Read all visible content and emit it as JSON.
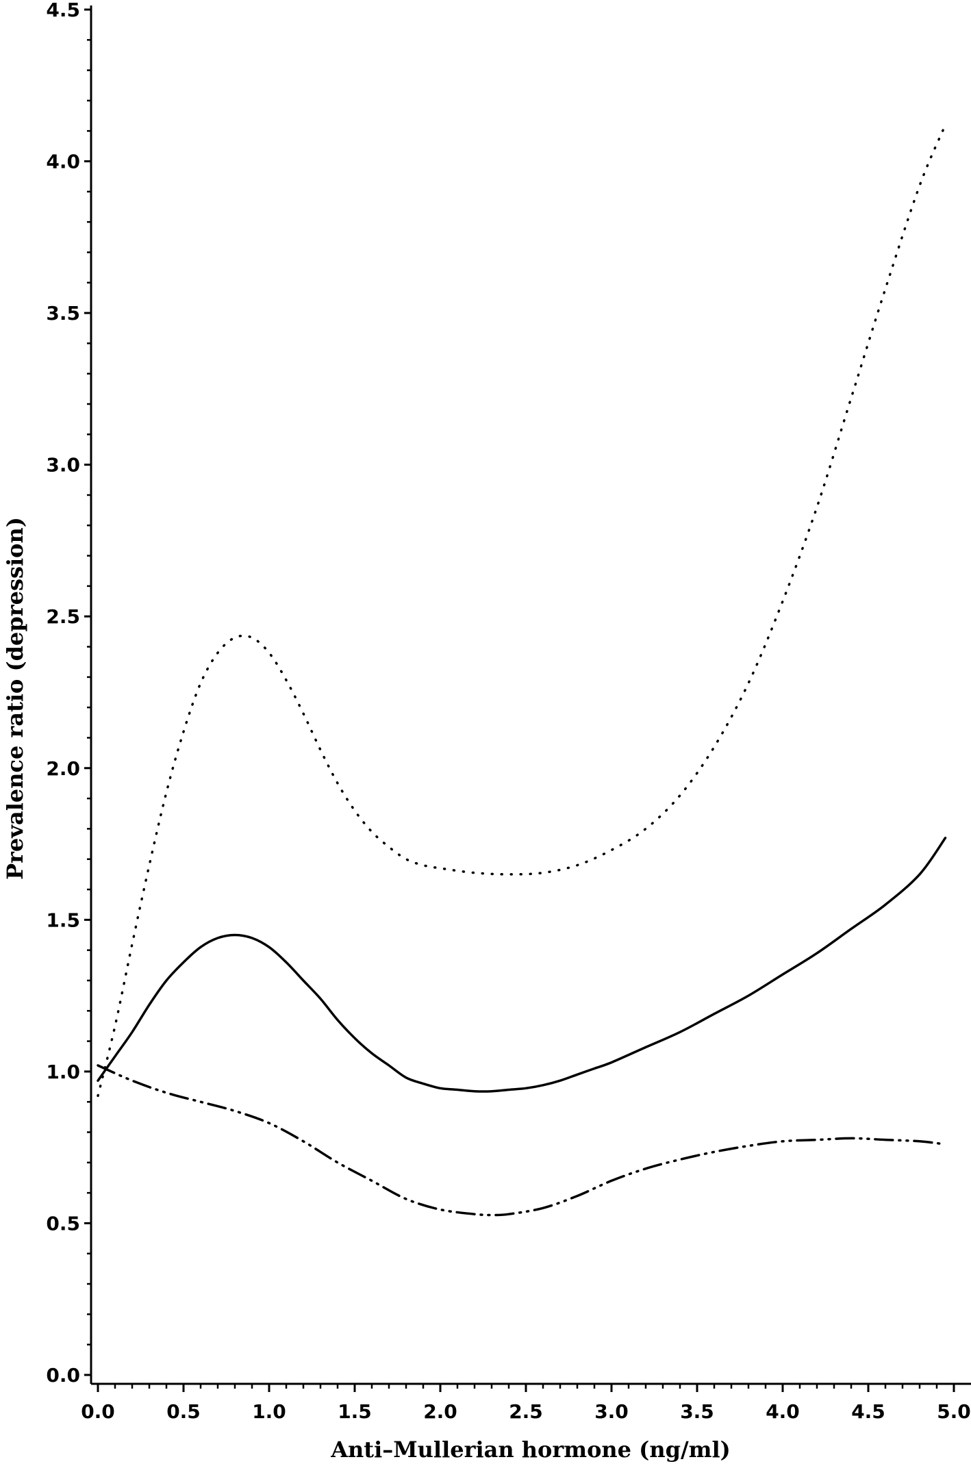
{
  "chart_data": {
    "type": "line",
    "title": "",
    "xlabel": "Anti–Mullerian hormone (ng/ml)",
    "ylabel": "Prevalence ratio (depression)",
    "xlim": [
      0,
      5
    ],
    "ylim": [
      0,
      4.5
    ],
    "x_ticks": [
      "0.0",
      "0.5",
      "1.0",
      "1.5",
      "2.0",
      "2.5",
      "3.0",
      "3.5",
      "4.0",
      "4.5",
      "5.0"
    ],
    "y_ticks": [
      "0.0",
      "0.5",
      "1.0",
      "1.5",
      "2.0",
      "2.5",
      "3.0",
      "3.5",
      "4.0",
      "4.5"
    ],
    "grid": false,
    "legend": "none",
    "series": [
      {
        "style": "solid",
        "x": [
          0.0,
          0.1,
          0.2,
          0.3,
          0.4,
          0.5,
          0.6,
          0.7,
          0.8,
          0.9,
          1.0,
          1.1,
          1.2,
          1.3,
          1.4,
          1.5,
          1.6,
          1.7,
          1.8,
          1.9,
          2.0,
          2.1,
          2.2,
          2.3,
          2.4,
          2.5,
          2.6,
          2.7,
          2.8,
          2.9,
          3.0,
          3.2,
          3.4,
          3.6,
          3.8,
          4.0,
          4.2,
          4.4,
          4.6,
          4.8,
          4.95
        ],
        "y": [
          0.97,
          1.05,
          1.13,
          1.22,
          1.3,
          1.36,
          1.41,
          1.44,
          1.45,
          1.44,
          1.41,
          1.36,
          1.3,
          1.24,
          1.17,
          1.11,
          1.06,
          1.02,
          0.98,
          0.96,
          0.945,
          0.94,
          0.935,
          0.935,
          0.94,
          0.945,
          0.955,
          0.97,
          0.99,
          1.01,
          1.03,
          1.08,
          1.13,
          1.19,
          1.25,
          1.32,
          1.39,
          1.47,
          1.55,
          1.65,
          1.77
        ]
      },
      {
        "style": "dotted",
        "x": [
          0.0,
          0.1,
          0.2,
          0.3,
          0.4,
          0.5,
          0.6,
          0.7,
          0.8,
          0.9,
          1.0,
          1.1,
          1.2,
          1.3,
          1.4,
          1.5,
          1.6,
          1.7,
          1.8,
          1.9,
          2.0,
          2.2,
          2.4,
          2.6,
          2.8,
          3.0,
          3.2,
          3.4,
          3.6,
          3.8,
          4.0,
          4.2,
          4.4,
          4.6,
          4.8,
          4.95
        ],
        "y": [
          0.92,
          1.15,
          1.42,
          1.68,
          1.92,
          2.12,
          2.28,
          2.38,
          2.43,
          2.43,
          2.38,
          2.29,
          2.18,
          2.06,
          1.95,
          1.86,
          1.79,
          1.74,
          1.7,
          1.68,
          1.67,
          1.655,
          1.65,
          1.655,
          1.68,
          1.73,
          1.8,
          1.91,
          2.07,
          2.28,
          2.55,
          2.86,
          3.22,
          3.58,
          3.92,
          4.12
        ]
      },
      {
        "style": "dash-dot-dot",
        "x": [
          0.0,
          0.2,
          0.4,
          0.6,
          0.8,
          1.0,
          1.2,
          1.4,
          1.6,
          1.8,
          2.0,
          2.2,
          2.3,
          2.4,
          2.6,
          2.8,
          3.0,
          3.2,
          3.4,
          3.6,
          3.8,
          4.0,
          4.2,
          4.4,
          4.6,
          4.8,
          4.95
        ],
        "y": [
          1.02,
          0.97,
          0.93,
          0.9,
          0.87,
          0.83,
          0.77,
          0.7,
          0.64,
          0.58,
          0.545,
          0.53,
          0.527,
          0.53,
          0.55,
          0.59,
          0.64,
          0.68,
          0.71,
          0.735,
          0.755,
          0.77,
          0.775,
          0.78,
          0.775,
          0.77,
          0.76
        ]
      }
    ]
  }
}
